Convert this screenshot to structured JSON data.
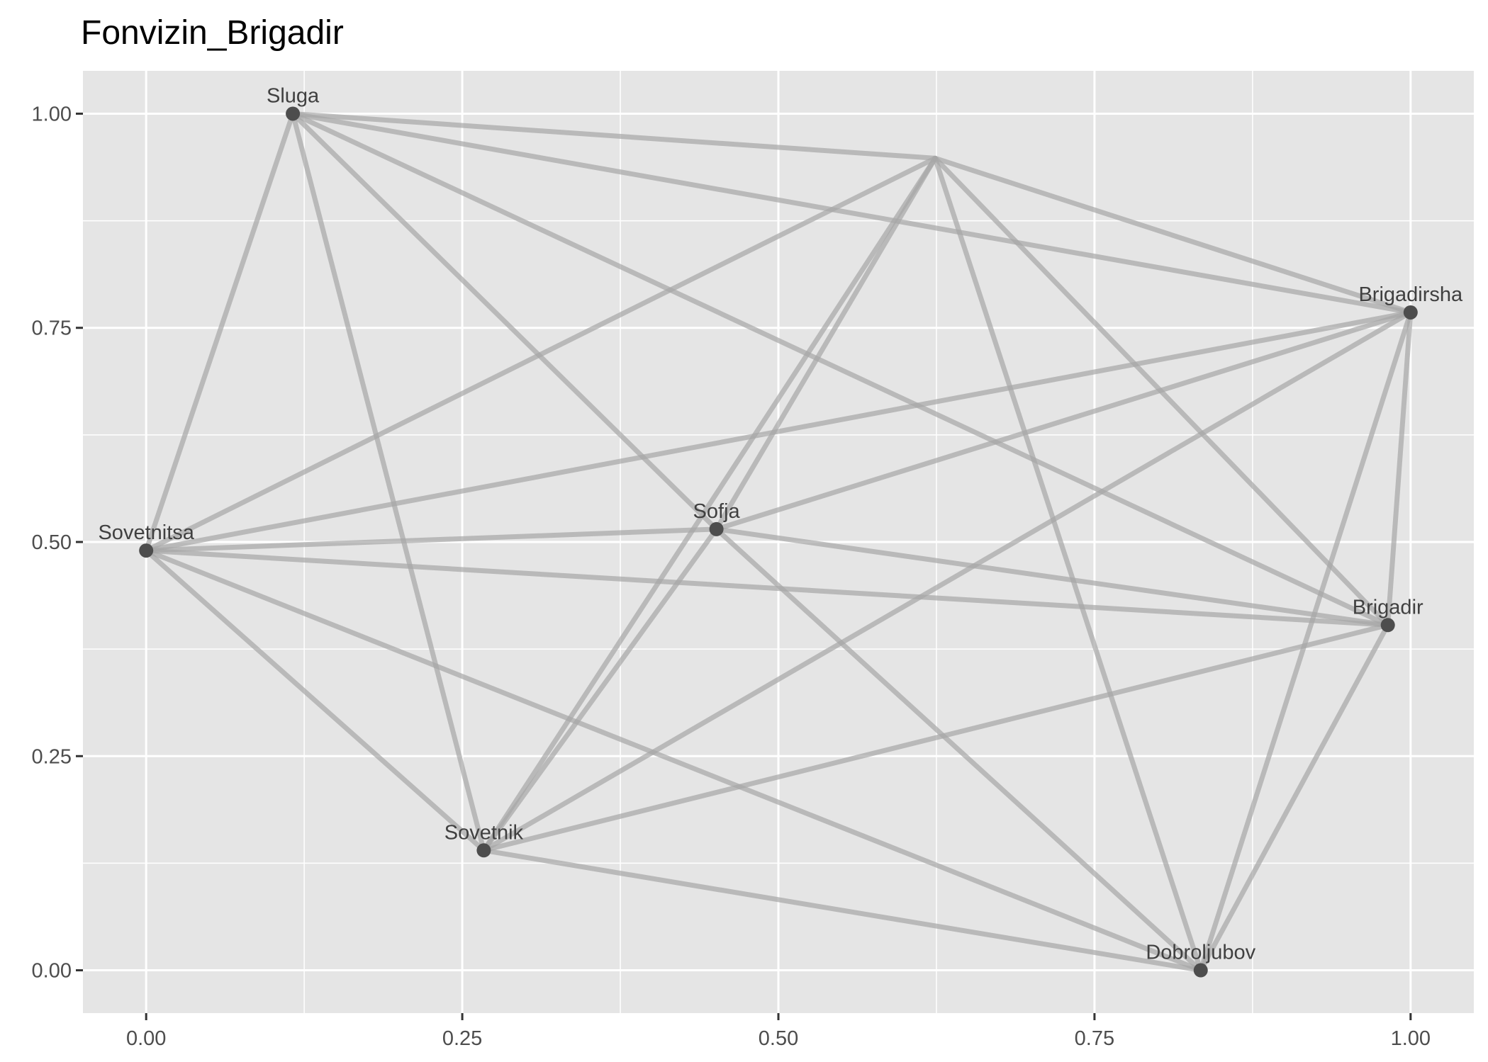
{
  "chart_data": {
    "type": "network",
    "title": "Fonvizin_Brigadir",
    "xlabel": "",
    "ylabel": "",
    "xlim": [
      -0.05,
      1.05
    ],
    "ylim": [
      -0.05,
      1.05
    ],
    "x_ticks": [
      0.0,
      0.25,
      0.5,
      0.75,
      1.0
    ],
    "x_tick_labels": [
      "0.00",
      "0.25",
      "0.50",
      "0.75",
      "1.00"
    ],
    "y_ticks": [
      0.0,
      0.25,
      0.5,
      0.75,
      1.0
    ],
    "y_tick_labels": [
      "0.00",
      "0.25",
      "0.50",
      "0.75",
      "1.00"
    ],
    "grid": true,
    "colors": {
      "panel": "#e5e5e5",
      "grid": "#ffffff",
      "edge": "#a6a6a6",
      "node": "#4d4d4d"
    },
    "nodes": [
      {
        "id": "sluga",
        "label": "Sluga",
        "x": 0.116,
        "y": 1.0
      },
      {
        "id": "unlabeled",
        "label": "",
        "x": 0.624,
        "y": 0.948
      },
      {
        "id": "brigadirsha",
        "label": "Brigadirsha",
        "x": 1.0,
        "y": 0.768
      },
      {
        "id": "sovetnitsa",
        "label": "Sovetnitsa",
        "x": 0.0,
        "y": 0.49
      },
      {
        "id": "sofja",
        "label": "Sofja",
        "x": 0.451,
        "y": 0.515
      },
      {
        "id": "brigadir",
        "label": "Brigadir",
        "x": 0.982,
        "y": 0.403
      },
      {
        "id": "sovetnik",
        "label": "Sovetnik",
        "x": 0.267,
        "y": 0.14
      },
      {
        "id": "dobroljubov",
        "label": "Dobroljubov",
        "x": 0.834,
        "y": 0.0
      }
    ],
    "edges": [
      [
        "sluga",
        "unlabeled"
      ],
      [
        "sluga",
        "brigadirsha"
      ],
      [
        "sluga",
        "sovetnitsa"
      ],
      [
        "sluga",
        "sofja"
      ],
      [
        "sluga",
        "sovetnik"
      ],
      [
        "sluga",
        "brigadir"
      ],
      [
        "unlabeled",
        "brigadirsha"
      ],
      [
        "unlabeled",
        "sovetnitsa"
      ],
      [
        "unlabeled",
        "sofja"
      ],
      [
        "unlabeled",
        "sovetnik"
      ],
      [
        "unlabeled",
        "brigadir"
      ],
      [
        "unlabeled",
        "dobroljubov"
      ],
      [
        "brigadirsha",
        "sovetnitsa"
      ],
      [
        "brigadirsha",
        "sofja"
      ],
      [
        "brigadirsha",
        "sovetnik"
      ],
      [
        "brigadirsha",
        "brigadir"
      ],
      [
        "brigadirsha",
        "dobroljubov"
      ],
      [
        "sovetnitsa",
        "sofja"
      ],
      [
        "sovetnitsa",
        "brigadir"
      ],
      [
        "sovetnitsa",
        "sovetnik"
      ],
      [
        "sovetnitsa",
        "dobroljubov"
      ],
      [
        "sofja",
        "brigadir"
      ],
      [
        "sofja",
        "sovetnik"
      ],
      [
        "sofja",
        "dobroljubov"
      ],
      [
        "sovetnik",
        "brigadir"
      ],
      [
        "sovetnik",
        "dobroljubov"
      ],
      [
        "brigadir",
        "dobroljubov"
      ]
    ]
  }
}
